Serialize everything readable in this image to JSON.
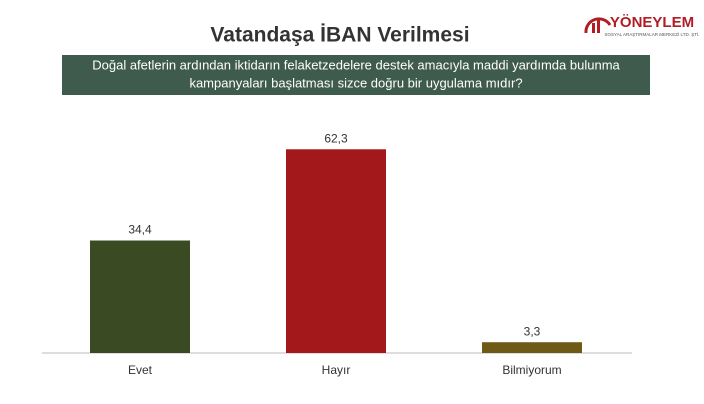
{
  "chart_data": {
    "type": "bar",
    "title": "Vatandaşa İBAN Verilmesi",
    "subtitle": [
      "Doğal afetlerin ardından iktidarın felaketzedelere destek amacıyla maddi yardımda bulunma",
      "kampanyaları başlatması sizce doğru bir uygulama mıdır?"
    ],
    "categories": [
      "Evet",
      "Hayır",
      "Bilmiyorum"
    ],
    "values": [
      34.4,
      62.3,
      3.3
    ],
    "value_labels": [
      "34,4",
      "62,3",
      "3,3"
    ],
    "colors": [
      "#3a4a22",
      "#a3181b",
      "#6e5a16"
    ]
  },
  "logo": {
    "name": "YÖNEYLEM",
    "tagline": "SOSYAL ARAŞTIRMALAR MERKEZİ LTD. ŞTİ."
  }
}
